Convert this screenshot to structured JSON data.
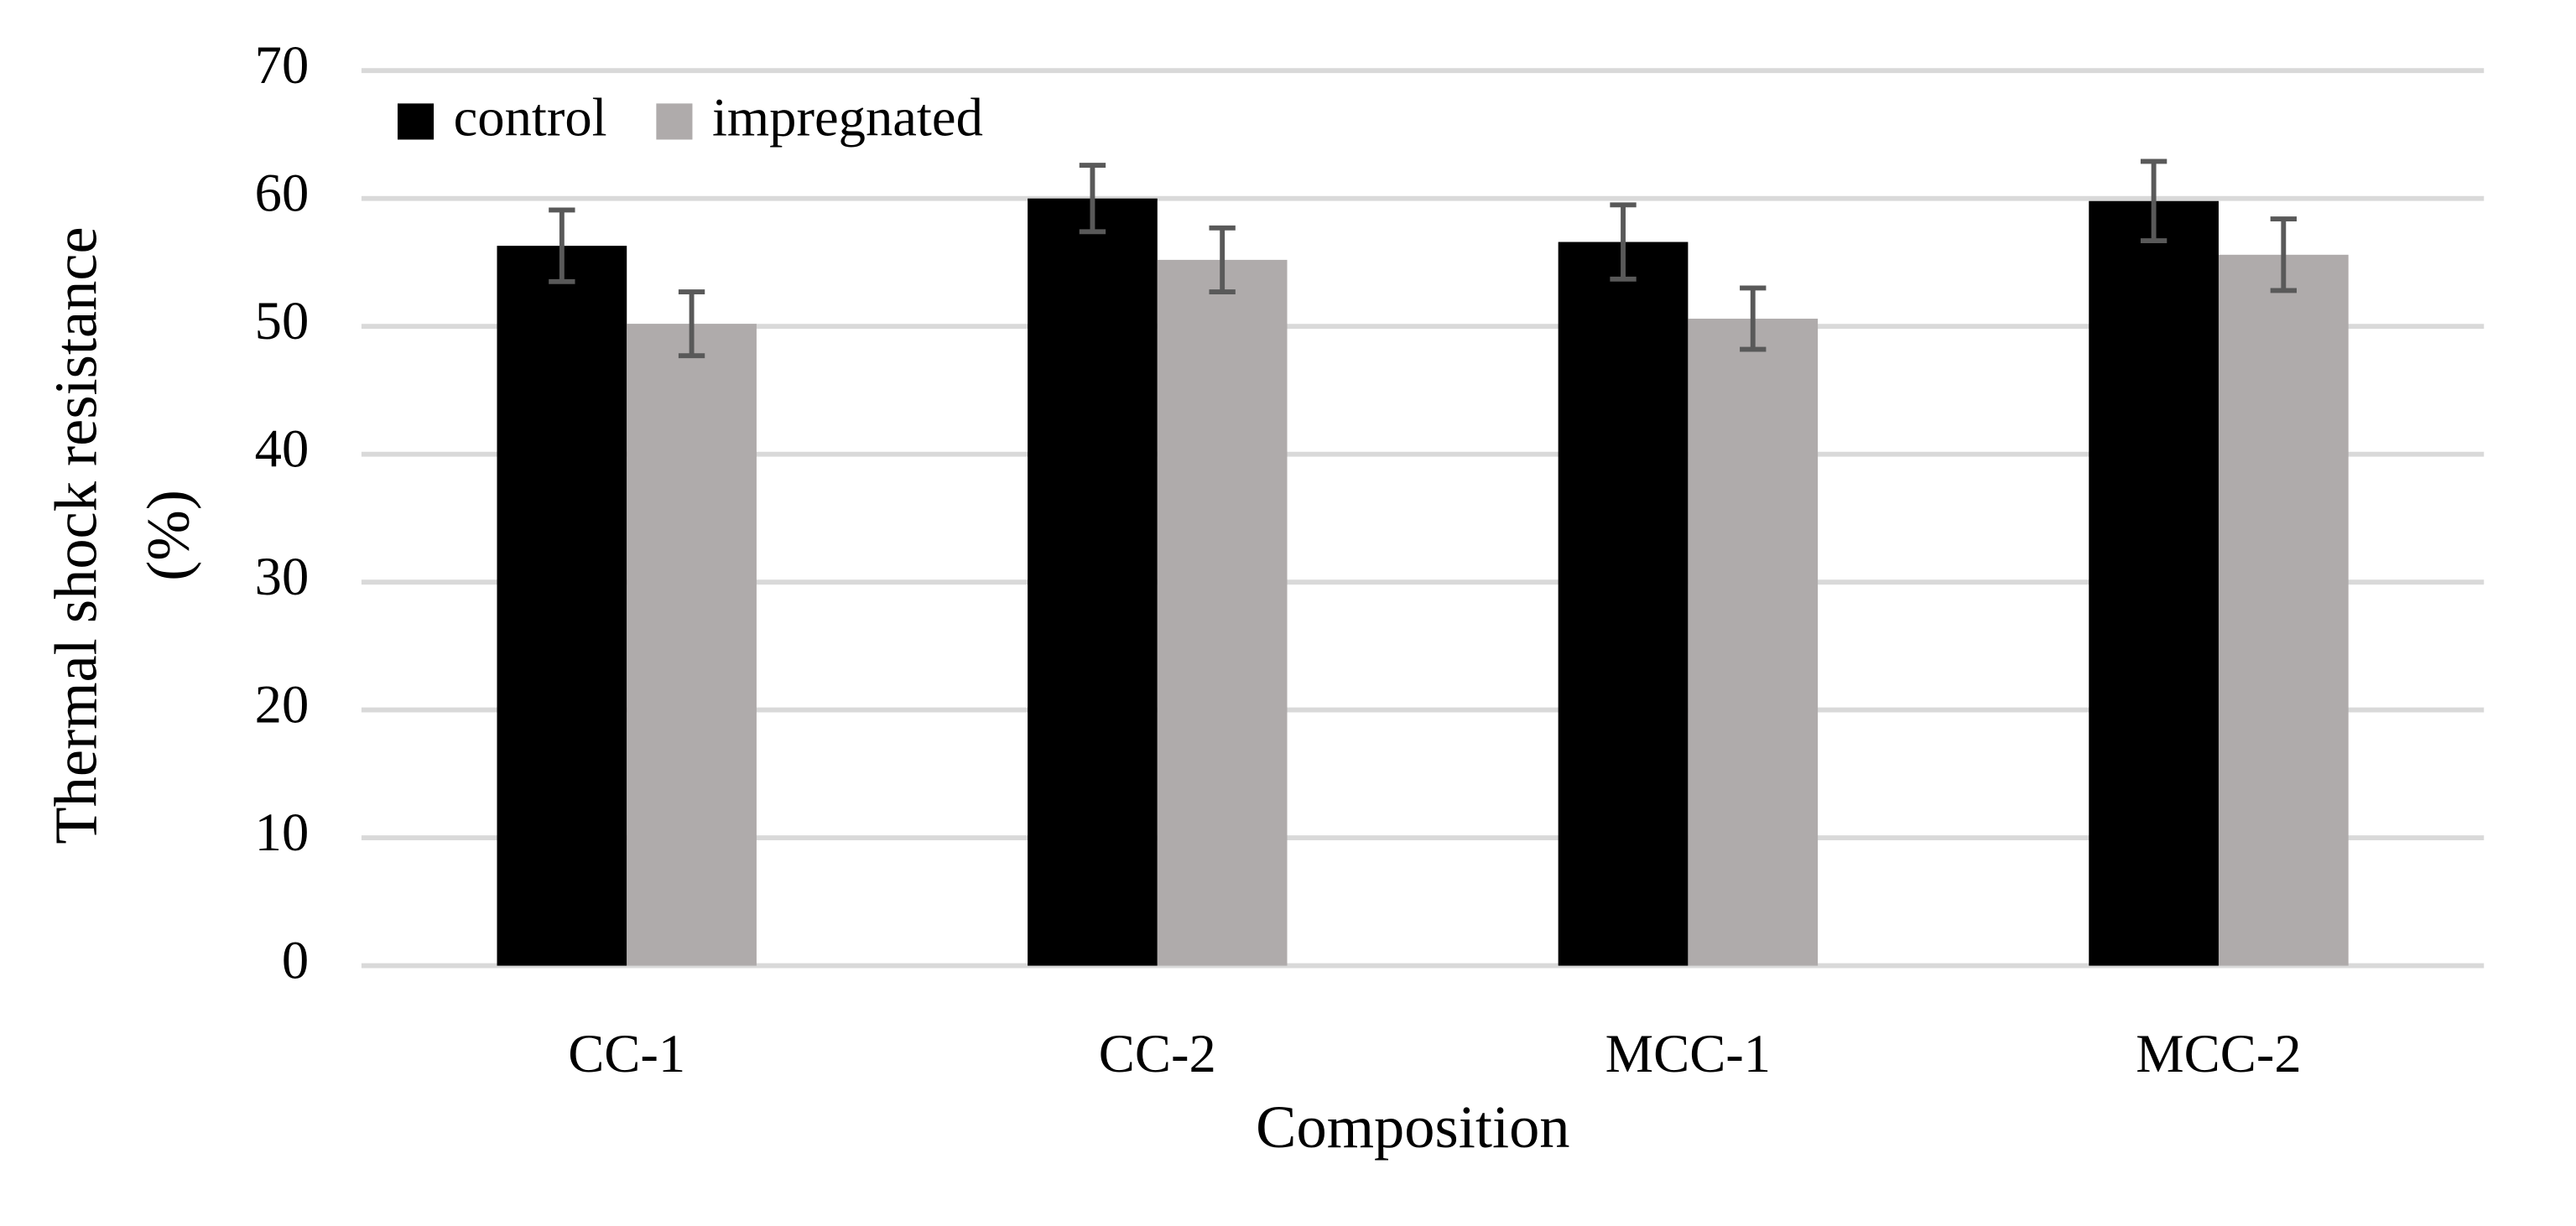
{
  "chart_data": {
    "type": "bar",
    "y_label": [
      "Thermal shock resistance",
      "(%)"
    ],
    "x_label": "Composition",
    "categories": [
      "CC-1",
      "CC-2",
      "MCC-1",
      "MCC-2"
    ],
    "series": [
      {
        "name": "control",
        "color": "#000000",
        "values": [
          56.3,
          60.0,
          56.6,
          59.8
        ],
        "errors": [
          2.8,
          2.6,
          2.9,
          3.1
        ]
      },
      {
        "name": "impregnated",
        "color": "#afabab",
        "values": [
          50.2,
          55.2,
          50.6,
          55.6
        ],
        "errors": [
          2.5,
          2.5,
          2.4,
          2.8
        ]
      }
    ],
    "ylim": [
      0,
      70
    ],
    "yticks": [
      0,
      10,
      20,
      30,
      40,
      50,
      60,
      70
    ],
    "grid": true,
    "legend": "top-left"
  }
}
